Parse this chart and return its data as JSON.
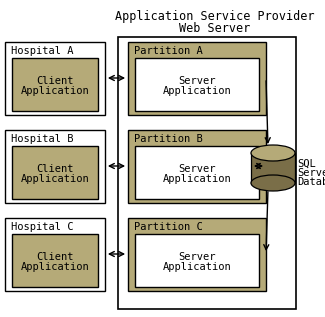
{
  "title_line1": "Application Service Provider",
  "title_line2": "Web Server",
  "hospitals": [
    "Hospital A",
    "Hospital B",
    "Hospital C"
  ],
  "partitions": [
    "Partition A",
    "Partition B",
    "Partition C"
  ],
  "bg_color": "#ffffff",
  "hospital_box_color": "#ffffff",
  "hospital_box_edge": "#000000",
  "partition_outer_color": "#b5aa78",
  "partition_outer_edge": "#000000",
  "server_inner_color": "#ffffff",
  "server_inner_edge": "#000000",
  "client_inner_color": "#b5aa78",
  "client_inner_edge": "#000000",
  "asp_box_color": "#ffffff",
  "asp_box_edge": "#000000",
  "arrow_color": "#000000",
  "font_family": "monospace",
  "font_size": 7.5,
  "title_font_size": 8.5,
  "db_top_color": "#b5aa78",
  "db_side_color": "#7a6e48",
  "figw": 3.25,
  "figh": 3.17,
  "dpi": 100
}
